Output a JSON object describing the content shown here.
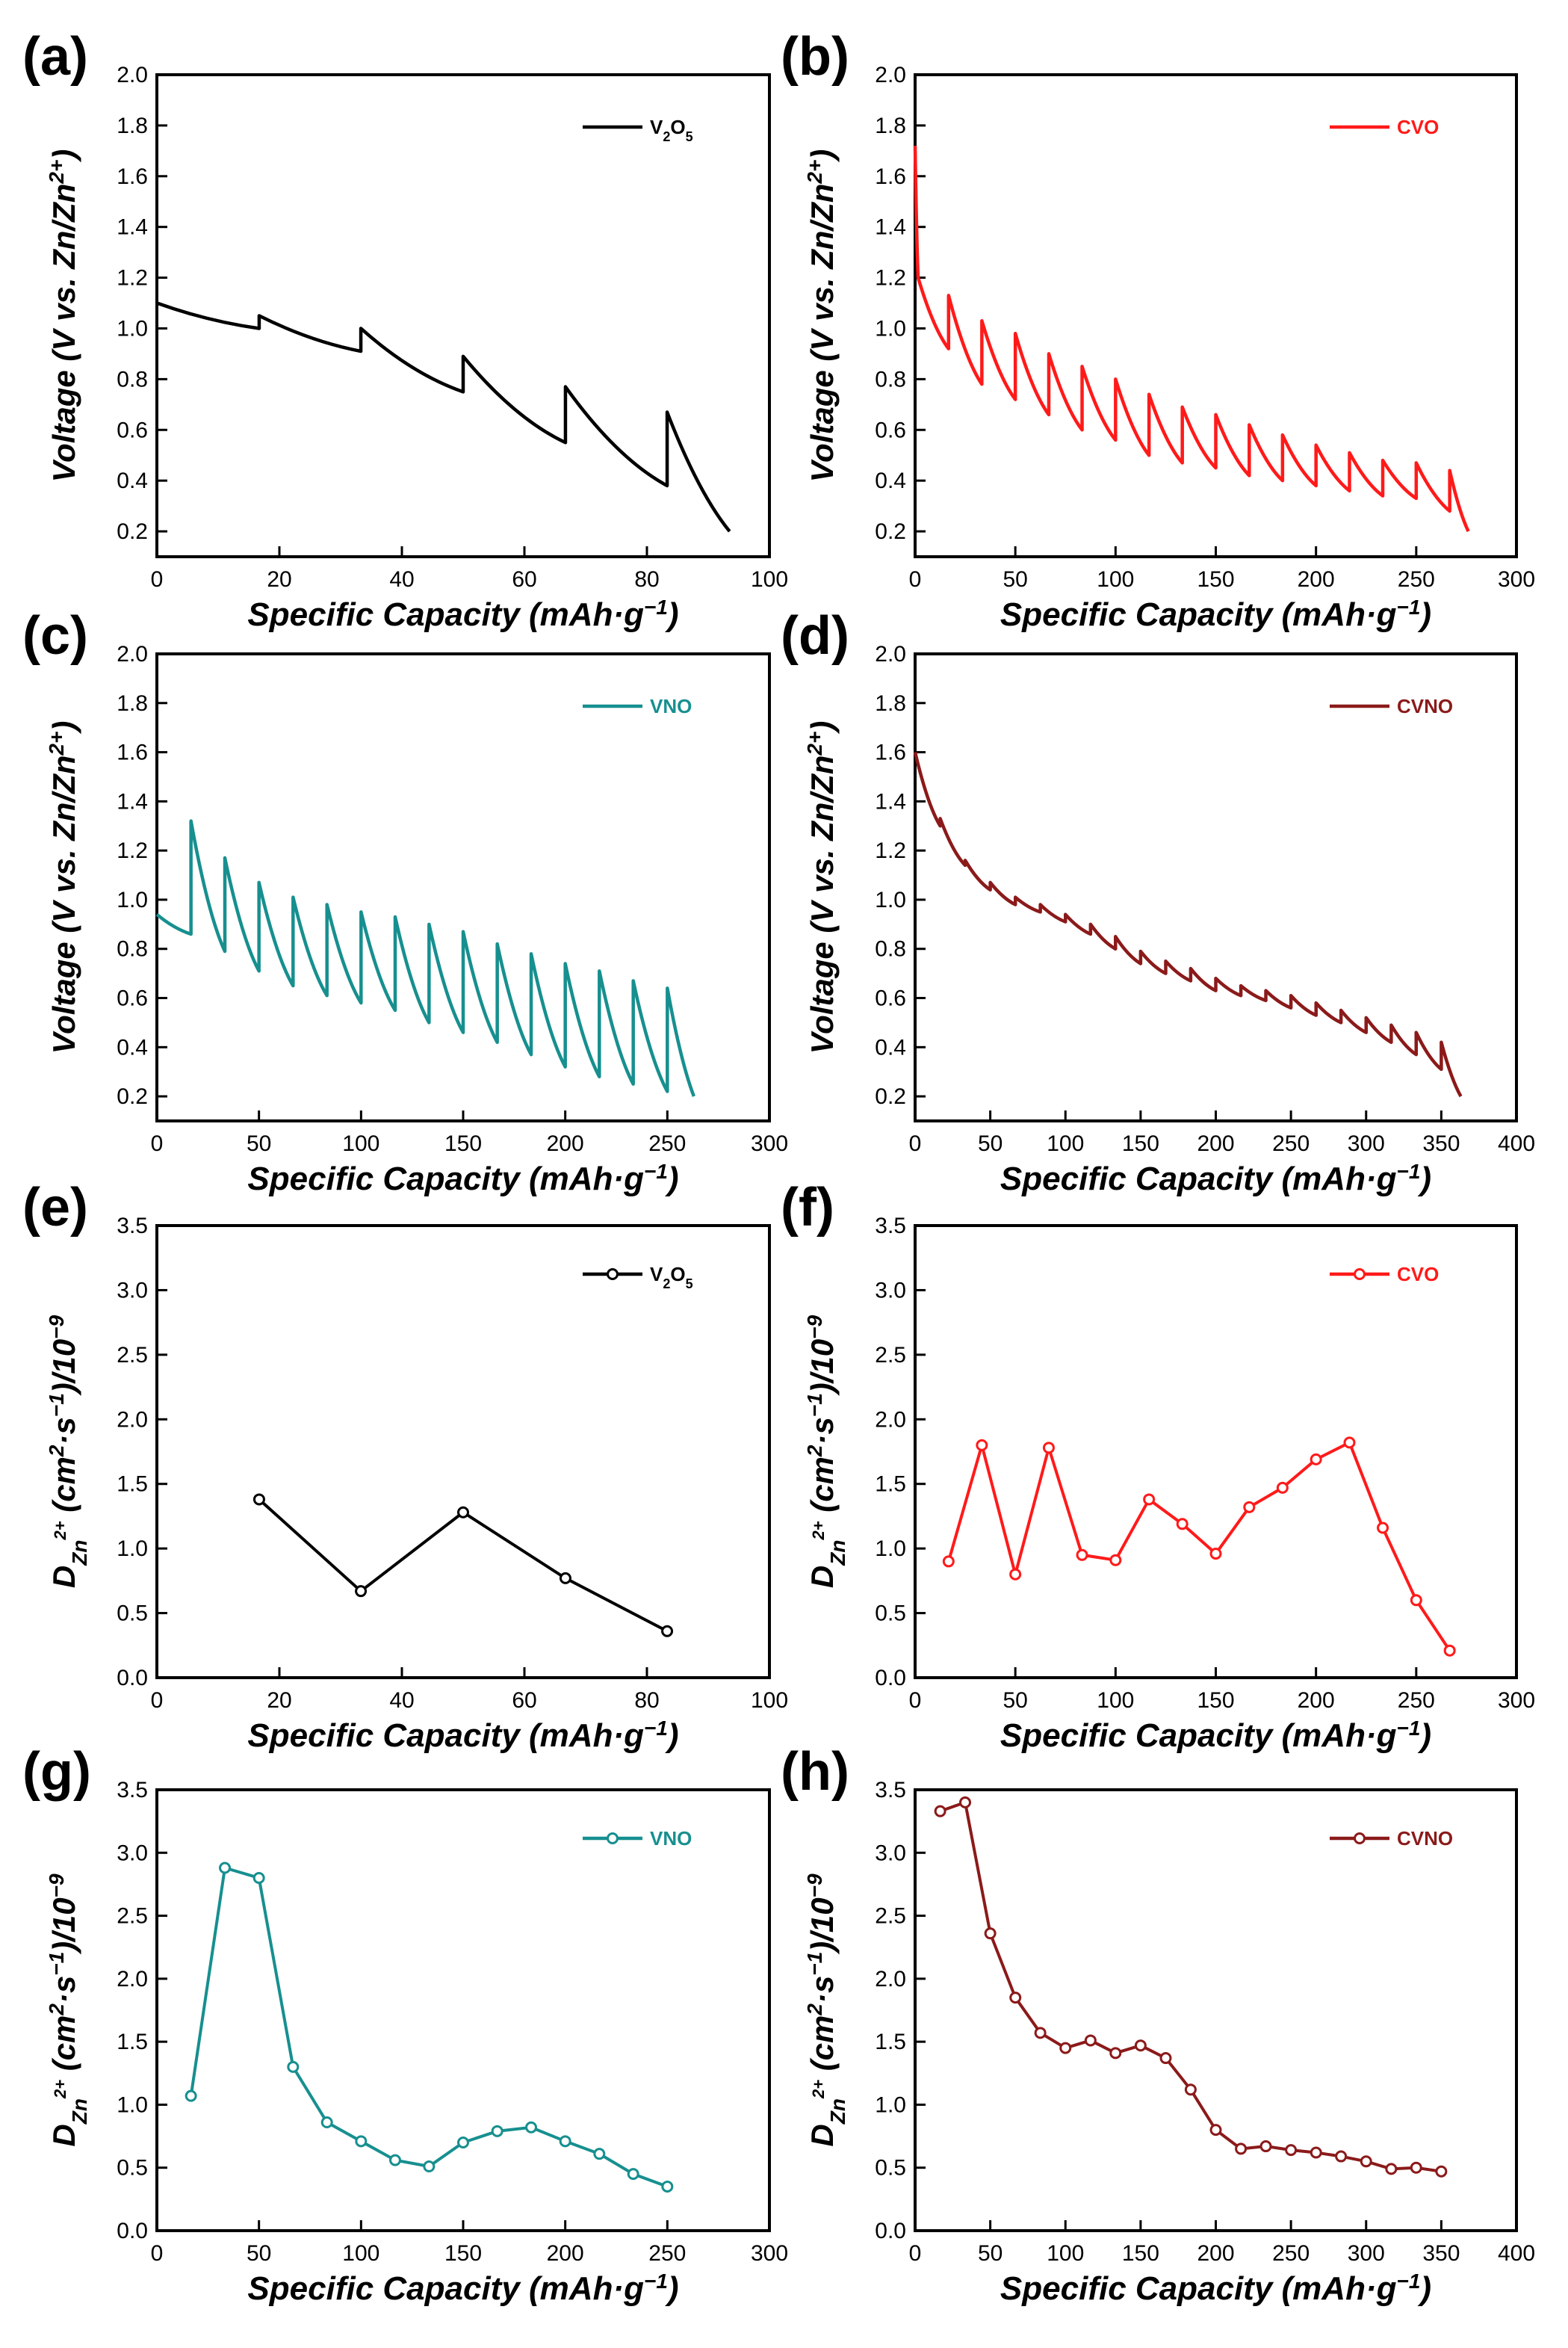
{
  "figure": {
    "x_axis_label": "Specific Capacity (mAh·g",
    "x_axis_label_sup": "−1",
    "x_axis_label_tail": ")",
    "voltage_label_main": "Voltage (V vs. Zn/Zn",
    "voltage_label_sup": "2+",
    "voltage_label_tail": ")",
    "diffusion_label_D": "D",
    "diffusion_label_sub": "Zn",
    "diffusion_label_subsup": "2+",
    "diffusion_label_units": " (cm",
    "diffusion_label_sup2": "2",
    "diffusion_label_mid": "·s",
    "diffusion_label_supm1": "−1",
    "diffusion_label_div": ")/10",
    "diffusion_label_supm9": "−9"
  },
  "chart_data": [
    {
      "panel": "(a)",
      "type": "line",
      "kind": "gitt",
      "legend": {
        "label": "V2O5",
        "base": "V",
        "sub1": "2",
        "mid": "O",
        "sub2": "5"
      },
      "color": "#000000",
      "xlim": [
        0,
        100
      ],
      "xticks": [
        0,
        20,
        40,
        60,
        80,
        100
      ],
      "ylim": [
        0.1,
        2.0
      ],
      "yticks": [
        0.2,
        0.4,
        0.6,
        0.8,
        1.0,
        1.2,
        1.4,
        1.6,
        1.8,
        2.0
      ],
      "xlabel": "Specific Capacity (mAh·g−1)",
      "ylabel": "Voltage (V vs. Zn/Zn2+)",
      "start": [
        0,
        1.1
      ],
      "steps": [
        {
          "x": 16.7,
          "low": 1.0,
          "peak": 1.05
        },
        {
          "x": 33.3,
          "low": 0.91,
          "peak": 1.0
        },
        {
          "x": 50.0,
          "low": 0.75,
          "peak": 0.89
        },
        {
          "x": 66.7,
          "low": 0.55,
          "peak": 0.77
        },
        {
          "x": 83.3,
          "low": 0.38,
          "peak": 0.67
        }
      ],
      "end": [
        93.5,
        0.2
      ]
    },
    {
      "panel": "(b)",
      "type": "line",
      "kind": "gitt",
      "legend": {
        "label": "CVO"
      },
      "color": "#ff1a1a",
      "xlim": [
        0,
        300
      ],
      "xticks": [
        0,
        50,
        100,
        150,
        200,
        250,
        300
      ],
      "ylim": [
        0.1,
        2.0
      ],
      "yticks": [
        0.2,
        0.4,
        0.6,
        0.8,
        1.0,
        1.2,
        1.4,
        1.6,
        1.8,
        2.0
      ],
      "xlabel": "Specific Capacity (mAh·g−1)",
      "ylabel": "Voltage (V vs. Zn/Zn2+)",
      "start": [
        0,
        1.72
      ],
      "steps": [
        {
          "x": 1.5,
          "low": 1.2,
          "peak": 1.2
        },
        {
          "x": 16.7,
          "low": 0.92,
          "peak": 1.13
        },
        {
          "x": 33.3,
          "low": 0.78,
          "peak": 1.03
        },
        {
          "x": 50.0,
          "low": 0.72,
          "peak": 0.98
        },
        {
          "x": 66.7,
          "low": 0.66,
          "peak": 0.9
        },
        {
          "x": 83.3,
          "low": 0.6,
          "peak": 0.85
        },
        {
          "x": 100.0,
          "low": 0.56,
          "peak": 0.8
        },
        {
          "x": 116.7,
          "low": 0.5,
          "peak": 0.74
        },
        {
          "x": 133.3,
          "low": 0.47,
          "peak": 0.69
        },
        {
          "x": 150.0,
          "low": 0.45,
          "peak": 0.66
        },
        {
          "x": 166.7,
          "low": 0.42,
          "peak": 0.62
        },
        {
          "x": 183.3,
          "low": 0.4,
          "peak": 0.58
        },
        {
          "x": 200.0,
          "low": 0.38,
          "peak": 0.54
        },
        {
          "x": 216.7,
          "low": 0.36,
          "peak": 0.51
        },
        {
          "x": 233.3,
          "low": 0.34,
          "peak": 0.48
        },
        {
          "x": 250.0,
          "low": 0.33,
          "peak": 0.47
        },
        {
          "x": 266.7,
          "low": 0.28,
          "peak": 0.44
        }
      ],
      "end": [
        276,
        0.2
      ]
    },
    {
      "panel": "(c)",
      "type": "line",
      "kind": "gitt",
      "legend": {
        "label": "VNO"
      },
      "color": "#178f8f",
      "xlim": [
        0,
        300
      ],
      "xticks": [
        0,
        50,
        100,
        150,
        200,
        250,
        300
      ],
      "ylim": [
        0.1,
        2.0
      ],
      "yticks": [
        0.2,
        0.4,
        0.6,
        0.8,
        1.0,
        1.2,
        1.4,
        1.6,
        1.8,
        2.0
      ],
      "xlabel": "Specific Capacity (mAh·g−1)",
      "ylabel": "Voltage (V vs. Zn/Zn2+)",
      "start": [
        0,
        0.94
      ],
      "steps": [
        {
          "x": 16.7,
          "low": 0.86,
          "peak": 1.32
        },
        {
          "x": 33.3,
          "low": 0.79,
          "peak": 1.17
        },
        {
          "x": 50.0,
          "low": 0.71,
          "peak": 1.07
        },
        {
          "x": 66.7,
          "low": 0.65,
          "peak": 1.01
        },
        {
          "x": 83.3,
          "low": 0.61,
          "peak": 0.98
        },
        {
          "x": 100.0,
          "low": 0.58,
          "peak": 0.95
        },
        {
          "x": 116.7,
          "low": 0.55,
          "peak": 0.93
        },
        {
          "x": 133.3,
          "low": 0.5,
          "peak": 0.9
        },
        {
          "x": 150.0,
          "low": 0.46,
          "peak": 0.87
        },
        {
          "x": 166.7,
          "low": 0.42,
          "peak": 0.82
        },
        {
          "x": 183.3,
          "low": 0.37,
          "peak": 0.78
        },
        {
          "x": 200.0,
          "low": 0.32,
          "peak": 0.74
        },
        {
          "x": 216.7,
          "low": 0.28,
          "peak": 0.71
        },
        {
          "x": 233.3,
          "low": 0.25,
          "peak": 0.67
        },
        {
          "x": 250.0,
          "low": 0.22,
          "peak": 0.64
        }
      ],
      "end": [
        263,
        0.2
      ]
    },
    {
      "panel": "(d)",
      "type": "line",
      "kind": "gitt",
      "legend": {
        "label": "CVNO"
      },
      "color": "#8b1a1a",
      "xlim": [
        0,
        400
      ],
      "xticks": [
        0,
        50,
        100,
        150,
        200,
        250,
        300,
        350,
        400
      ],
      "ylim": [
        0.1,
        2.0
      ],
      "yticks": [
        0.2,
        0.4,
        0.6,
        0.8,
        1.0,
        1.2,
        1.4,
        1.6,
        1.8,
        2.0
      ],
      "xlabel": "Specific Capacity (mAh·g−1)",
      "ylabel": "Voltage (V vs. Zn/Zn2+)",
      "start": [
        0,
        1.6
      ],
      "steps": [
        {
          "x": 16.7,
          "low": 1.3,
          "peak": 1.33
        },
        {
          "x": 33.3,
          "low": 1.14,
          "peak": 1.16
        },
        {
          "x": 50.0,
          "low": 1.04,
          "peak": 1.07
        },
        {
          "x": 66.7,
          "low": 0.98,
          "peak": 1.01
        },
        {
          "x": 83.3,
          "low": 0.95,
          "peak": 0.98
        },
        {
          "x": 100.0,
          "low": 0.91,
          "peak": 0.94
        },
        {
          "x": 116.7,
          "low": 0.86,
          "peak": 0.9
        },
        {
          "x": 133.3,
          "low": 0.8,
          "peak": 0.85
        },
        {
          "x": 150.0,
          "low": 0.74,
          "peak": 0.79
        },
        {
          "x": 166.7,
          "low": 0.7,
          "peak": 0.75
        },
        {
          "x": 183.3,
          "low": 0.67,
          "peak": 0.72
        },
        {
          "x": 200.0,
          "low": 0.63,
          "peak": 0.68
        },
        {
          "x": 216.7,
          "low": 0.61,
          "peak": 0.65
        },
        {
          "x": 233.3,
          "low": 0.59,
          "peak": 0.63
        },
        {
          "x": 250.0,
          "low": 0.56,
          "peak": 0.61
        },
        {
          "x": 266.7,
          "low": 0.53,
          "peak": 0.58
        },
        {
          "x": 283.3,
          "low": 0.5,
          "peak": 0.55
        },
        {
          "x": 300.0,
          "low": 0.46,
          "peak": 0.52
        },
        {
          "x": 316.7,
          "low": 0.42,
          "peak": 0.49
        },
        {
          "x": 333.3,
          "low": 0.37,
          "peak": 0.46
        },
        {
          "x": 350.0,
          "low": 0.31,
          "peak": 0.42
        }
      ],
      "end": [
        363,
        0.2
      ]
    },
    {
      "panel": "(e)",
      "type": "line",
      "kind": "markers",
      "legend": {
        "label": "V2O5",
        "base": "V",
        "sub1": "2",
        "mid": "O",
        "sub2": "5"
      },
      "color": "#000000",
      "xlim": [
        0,
        100
      ],
      "xticks": [
        0,
        20,
        40,
        60,
        80,
        100
      ],
      "ylim": [
        0,
        3.5
      ],
      "yticks": [
        0.0,
        0.5,
        1.0,
        1.5,
        2.0,
        2.5,
        3.0,
        3.5
      ],
      "xlabel": "Specific Capacity (mAh·g−1)",
      "ylabel": "DZn2+ (cm2·s−1)/10−9",
      "x": [
        16.7,
        33.3,
        50.0,
        66.7,
        83.3
      ],
      "y": [
        1.38,
        0.67,
        1.28,
        0.77,
        0.36
      ]
    },
    {
      "panel": "(f)",
      "type": "line",
      "kind": "markers",
      "legend": {
        "label": "CVO"
      },
      "color": "#ff1a1a",
      "xlim": [
        0,
        300
      ],
      "xticks": [
        0,
        50,
        100,
        150,
        200,
        250,
        300
      ],
      "ylim": [
        0,
        3.5
      ],
      "yticks": [
        0.0,
        0.5,
        1.0,
        1.5,
        2.0,
        2.5,
        3.0,
        3.5
      ],
      "xlabel": "Specific Capacity (mAh·g−1)",
      "ylabel": "DZn2+ (cm2·s−1)/10−9",
      "x": [
        16.7,
        33.3,
        50.0,
        66.7,
        83.3,
        100.0,
        116.7,
        133.3,
        150.0,
        166.7,
        183.3,
        200.0,
        216.7,
        233.3,
        250.0,
        266.7
      ],
      "y": [
        0.9,
        1.8,
        0.8,
        1.78,
        0.95,
        0.91,
        1.38,
        1.19,
        0.96,
        1.32,
        1.47,
        1.69,
        1.82,
        1.16,
        0.6,
        0.21
      ]
    },
    {
      "panel": "(g)",
      "type": "line",
      "kind": "markers",
      "legend": {
        "label": "VNO"
      },
      "color": "#178f8f",
      "xlim": [
        0,
        300
      ],
      "xticks": [
        0,
        50,
        100,
        150,
        200,
        250,
        300
      ],
      "ylim": [
        0,
        3.5
      ],
      "yticks": [
        0.0,
        0.5,
        1.0,
        1.5,
        2.0,
        2.5,
        3.0,
        3.5
      ],
      "xlabel": "Specific Capacity (mAh·g−1)",
      "ylabel": "DZn2+ (cm2·s−1)/10−9",
      "x": [
        16.7,
        33.3,
        50.0,
        66.7,
        83.3,
        100.0,
        116.7,
        133.3,
        150.0,
        166.7,
        183.3,
        200.0,
        216.7,
        233.3,
        250.0
      ],
      "y": [
        1.07,
        2.88,
        2.8,
        1.3,
        0.86,
        0.71,
        0.56,
        0.51,
        0.7,
        0.79,
        0.82,
        0.71,
        0.61,
        0.45,
        0.35
      ]
    },
    {
      "panel": "(h)",
      "type": "line",
      "kind": "markers",
      "legend": {
        "label": "CVNO"
      },
      "color": "#8b1a1a",
      "xlim": [
        0,
        400
      ],
      "xticks": [
        0,
        50,
        100,
        150,
        200,
        250,
        300,
        350,
        400
      ],
      "ylim": [
        0,
        3.5
      ],
      "yticks": [
        0.0,
        0.5,
        1.0,
        1.5,
        2.0,
        2.5,
        3.0,
        3.5
      ],
      "xlabel": "Specific Capacity (mAh·g−1)",
      "ylabel": "DZn2+ (cm2·s−1)/10−9",
      "x": [
        16.7,
        33.3,
        50.0,
        66.7,
        83.3,
        100.0,
        116.7,
        133.3,
        150.0,
        166.7,
        183.3,
        200.0,
        216.7,
        233.3,
        250.0,
        266.7,
        283.3,
        300.0,
        316.7,
        333.3,
        350.0
      ],
      "y": [
        3.33,
        3.4,
        2.36,
        1.85,
        1.57,
        1.45,
        1.51,
        1.41,
        1.47,
        1.37,
        1.12,
        0.8,
        0.65,
        0.67,
        0.64,
        0.62,
        0.59,
        0.55,
        0.49,
        0.5,
        0.47
      ]
    }
  ]
}
